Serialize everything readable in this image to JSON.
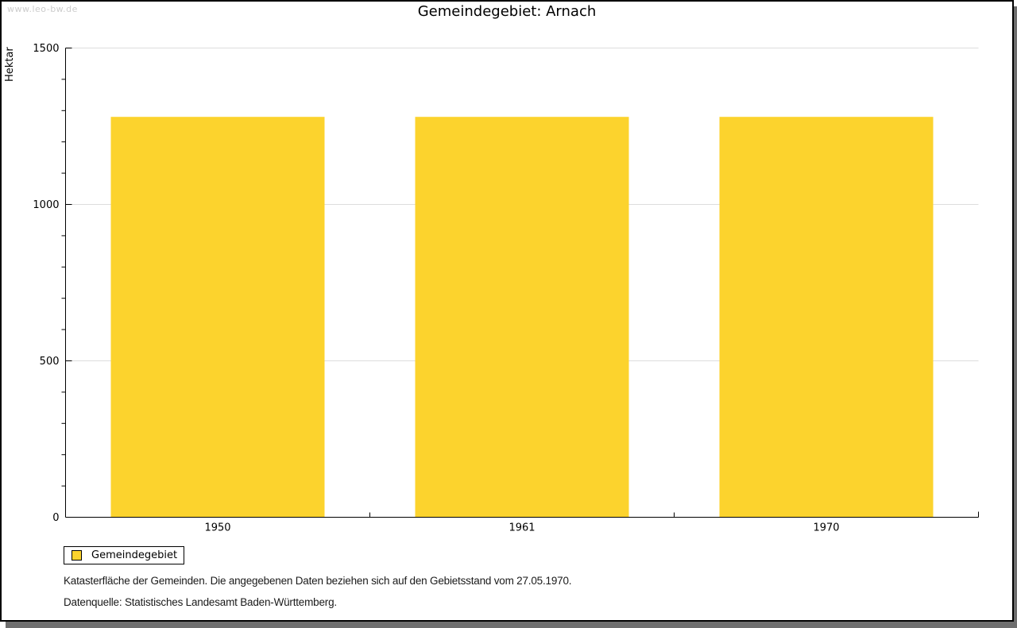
{
  "page": {
    "watermark": "www.leo-bw.de",
    "title": "Gemeindegebiet: Arnach"
  },
  "chart_data": {
    "type": "bar",
    "title": "Gemeindegebiet: Arnach",
    "categories": [
      "1950",
      "1961",
      "1970"
    ],
    "series": [
      {
        "name": "Gemeindegebiet",
        "values": [
          1280,
          1280,
          1280
        ]
      }
    ],
    "xlabel": "",
    "ylabel": "Hektar",
    "ylim": [
      0,
      1500
    ],
    "yticks_major": [
      0,
      500,
      1000,
      1500
    ],
    "ytick_minor_step": 100,
    "grid": true,
    "legend_position": "bottom-left",
    "colors": {
      "bar": "#FCD32D",
      "grid": "#DDDDDD",
      "axis": "#000000",
      "text": "#000000"
    }
  },
  "legend": {
    "label": "Gemeindegebiet",
    "swatch_color": "#FCD32D"
  },
  "footer": {
    "line1": "Katasterfläche der Gemeinden. Die angegebenen Daten beziehen sich auf den Gebietsstand vom 27.05.1970.",
    "line2": "Datenquelle: Statistisches Landesamt Baden-Württemberg."
  }
}
